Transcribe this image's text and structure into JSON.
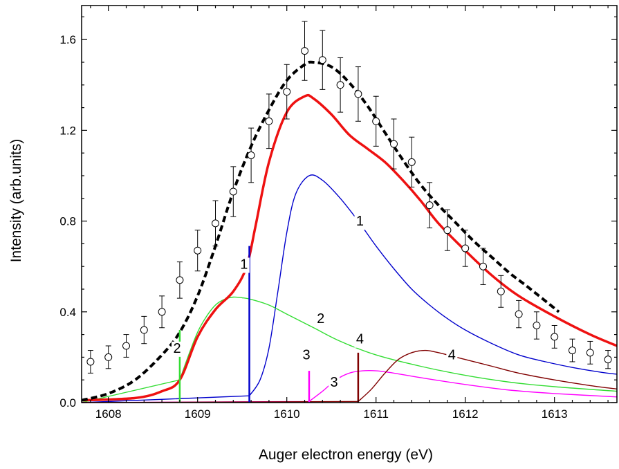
{
  "chart_data": {
    "type": "line",
    "title": "",
    "xlabel": "Auger electron energy (eV)",
    "ylabel": "Intensity (arb.units)",
    "xlim": [
      1607.7,
      1613.7
    ],
    "ylim": [
      0.0,
      1.75
    ],
    "x_ticks": [
      1608,
      1609,
      1610,
      1611,
      1612,
      1613
    ],
    "y_ticks": [
      0.0,
      0.4,
      0.8,
      1.2,
      1.6
    ],
    "x_tick_labels": [
      "1608",
      "1609",
      "1610",
      "1611",
      "1612",
      "1613"
    ],
    "y_tick_labels": [
      "0.0",
      "0.4",
      "0.8",
      "1.2",
      "1.6"
    ],
    "grid": false,
    "legend": "none",
    "experimental_points": {
      "marker": "open-circle",
      "x": [
        1607.8,
        1608.0,
        1608.2,
        1608.4,
        1608.6,
        1608.8,
        1609.0,
        1609.2,
        1609.4,
        1609.6,
        1609.8,
        1610.0,
        1610.2,
        1610.4,
        1610.6,
        1610.8,
        1611.0,
        1611.2,
        1611.4,
        1611.6,
        1611.8,
        1612.0,
        1612.2,
        1612.4,
        1612.6,
        1612.8,
        1613.0,
        1613.2,
        1613.4,
        1613.6
      ],
      "y": [
        0.18,
        0.2,
        0.25,
        0.32,
        0.4,
        0.54,
        0.67,
        0.79,
        0.93,
        1.09,
        1.24,
        1.37,
        1.55,
        1.51,
        1.4,
        1.36,
        1.24,
        1.14,
        1.06,
        0.87,
        0.76,
        0.68,
        0.6,
        0.49,
        0.39,
        0.34,
        0.29,
        0.23,
        0.22,
        0.19
      ],
      "err": [
        0.05,
        0.05,
        0.05,
        0.06,
        0.07,
        0.08,
        0.09,
        0.1,
        0.11,
        0.12,
        0.12,
        0.12,
        0.13,
        0.13,
        0.12,
        0.12,
        0.11,
        0.11,
        0.11,
        0.1,
        0.09,
        0.08,
        0.08,
        0.07,
        0.06,
        0.06,
        0.05,
        0.05,
        0.05,
        0.04
      ]
    },
    "series": [
      {
        "label": "1",
        "color": "#0000cc",
        "width": 1.4,
        "style": "solid",
        "onset": 1609.58,
        "x": [
          1607.7,
          1609.58,
          1609.7,
          1609.8,
          1609.9,
          1610.0,
          1610.1,
          1610.25,
          1610.4,
          1610.6,
          1610.8,
          1611.0,
          1611.2,
          1611.4,
          1611.6,
          1611.8,
          1612.0,
          1612.3,
          1612.6,
          1612.9,
          1613.2,
          1613.5,
          1613.7
        ],
        "y": [
          0.0,
          0.03,
          0.1,
          0.24,
          0.49,
          0.75,
          0.92,
          1.0,
          0.98,
          0.9,
          0.8,
          0.69,
          0.59,
          0.5,
          0.43,
          0.37,
          0.32,
          0.26,
          0.21,
          0.18,
          0.155,
          0.135,
          0.125
        ]
      },
      {
        "label": "2",
        "color": "#33dd33",
        "width": 1.4,
        "style": "solid",
        "onset": 1608.8,
        "x": [
          1607.7,
          1608.8,
          1608.9,
          1609.0,
          1609.1,
          1609.2,
          1609.3,
          1609.4,
          1609.5,
          1609.6,
          1609.8,
          1610.0,
          1610.3,
          1610.6,
          1611.0,
          1611.5,
          1612.0,
          1612.5,
          1613.0,
          1613.7
        ],
        "y": [
          0.0,
          0.1,
          0.21,
          0.31,
          0.38,
          0.43,
          0.455,
          0.465,
          0.462,
          0.455,
          0.43,
          0.39,
          0.33,
          0.27,
          0.21,
          0.16,
          0.12,
          0.09,
          0.07,
          0.05
        ]
      },
      {
        "label": "3",
        "color": "#ff00ff",
        "width": 1.4,
        "style": "solid",
        "onset": 1610.25,
        "x": [
          1607.7,
          1610.25,
          1610.4,
          1610.55,
          1610.7,
          1610.85,
          1611.0,
          1611.2,
          1611.5,
          1612.0,
          1612.5,
          1613.0,
          1613.7
        ],
        "y": [
          0.0,
          0.005,
          0.05,
          0.1,
          0.13,
          0.14,
          0.14,
          0.13,
          0.11,
          0.08,
          0.055,
          0.04,
          0.025
        ]
      },
      {
        "label": "4",
        "color": "#800000",
        "width": 1.4,
        "style": "solid",
        "onset": 1610.8,
        "x": [
          1607.7,
          1610.8,
          1610.95,
          1611.1,
          1611.25,
          1611.4,
          1611.55,
          1611.7,
          1612.0,
          1612.3,
          1612.6,
          1613.0,
          1613.4,
          1613.7
        ],
        "y": [
          0.0,
          0.005,
          0.06,
          0.13,
          0.19,
          0.22,
          0.23,
          0.22,
          0.19,
          0.16,
          0.13,
          0.1,
          0.075,
          0.06
        ]
      },
      {
        "label": "sum",
        "color": "#ee1111",
        "width": 3.5,
        "style": "solid",
        "x": [
          1607.7,
          1608.3,
          1608.6,
          1608.8,
          1609.0,
          1609.2,
          1609.4,
          1609.55,
          1609.65,
          1609.8,
          1610.0,
          1610.2,
          1610.3,
          1610.5,
          1610.7,
          1610.9,
          1611.1,
          1611.3,
          1611.5,
          1611.7,
          1612.0,
          1612.3,
          1612.6,
          1613.0,
          1613.4,
          1613.7
        ],
        "y": [
          0.01,
          0.02,
          0.05,
          0.1,
          0.29,
          0.41,
          0.49,
          0.6,
          0.78,
          1.06,
          1.28,
          1.35,
          1.34,
          1.27,
          1.18,
          1.12,
          1.06,
          0.98,
          0.89,
          0.79,
          0.67,
          0.56,
          0.47,
          0.38,
          0.3,
          0.25
        ]
      },
      {
        "label": "fit",
        "color": "#000000",
        "width": 4,
        "style": "dashed",
        "x": [
          1607.7,
          1608.0,
          1608.3,
          1608.6,
          1608.8,
          1609.0,
          1609.2,
          1609.4,
          1609.6,
          1609.8,
          1610.0,
          1610.2,
          1610.3,
          1610.5,
          1610.7,
          1610.9,
          1611.1,
          1611.3,
          1611.5,
          1611.7,
          1611.9,
          1612.1,
          1612.3,
          1612.5,
          1612.7,
          1613.05
        ],
        "y": [
          0.01,
          0.04,
          0.1,
          0.21,
          0.31,
          0.47,
          0.69,
          0.93,
          1.13,
          1.29,
          1.42,
          1.49,
          1.5,
          1.48,
          1.41,
          1.31,
          1.19,
          1.07,
          0.96,
          0.87,
          0.79,
          0.71,
          0.64,
          0.57,
          0.51,
          0.4
        ]
      }
    ],
    "onset_markers": [
      {
        "x": 1608.8,
        "y": 0.32,
        "color": "#33dd33",
        "label": "2"
      },
      {
        "x": 1609.58,
        "y": 0.69,
        "color": "#0000cc",
        "label": "1"
      },
      {
        "x": 1610.25,
        "y": 0.14,
        "color": "#ff00ff",
        "label": "3"
      },
      {
        "x": 1610.8,
        "y": 0.22,
        "color": "#800000",
        "label": "4"
      }
    ],
    "annotations": [
      {
        "text": "1",
        "x": 1610.82,
        "y": 0.78
      },
      {
        "text": "1",
        "x": 1609.52,
        "y": 0.59
      },
      {
        "text": "2",
        "x": 1610.38,
        "y": 0.35
      },
      {
        "text": "2",
        "x": 1608.77,
        "y": 0.22
      },
      {
        "text": "3",
        "x": 1610.22,
        "y": 0.19
      },
      {
        "text": "3",
        "x": 1610.53,
        "y": 0.07
      },
      {
        "text": "4",
        "x": 1610.82,
        "y": 0.26
      },
      {
        "text": "4",
        "x": 1611.85,
        "y": 0.19
      }
    ]
  }
}
